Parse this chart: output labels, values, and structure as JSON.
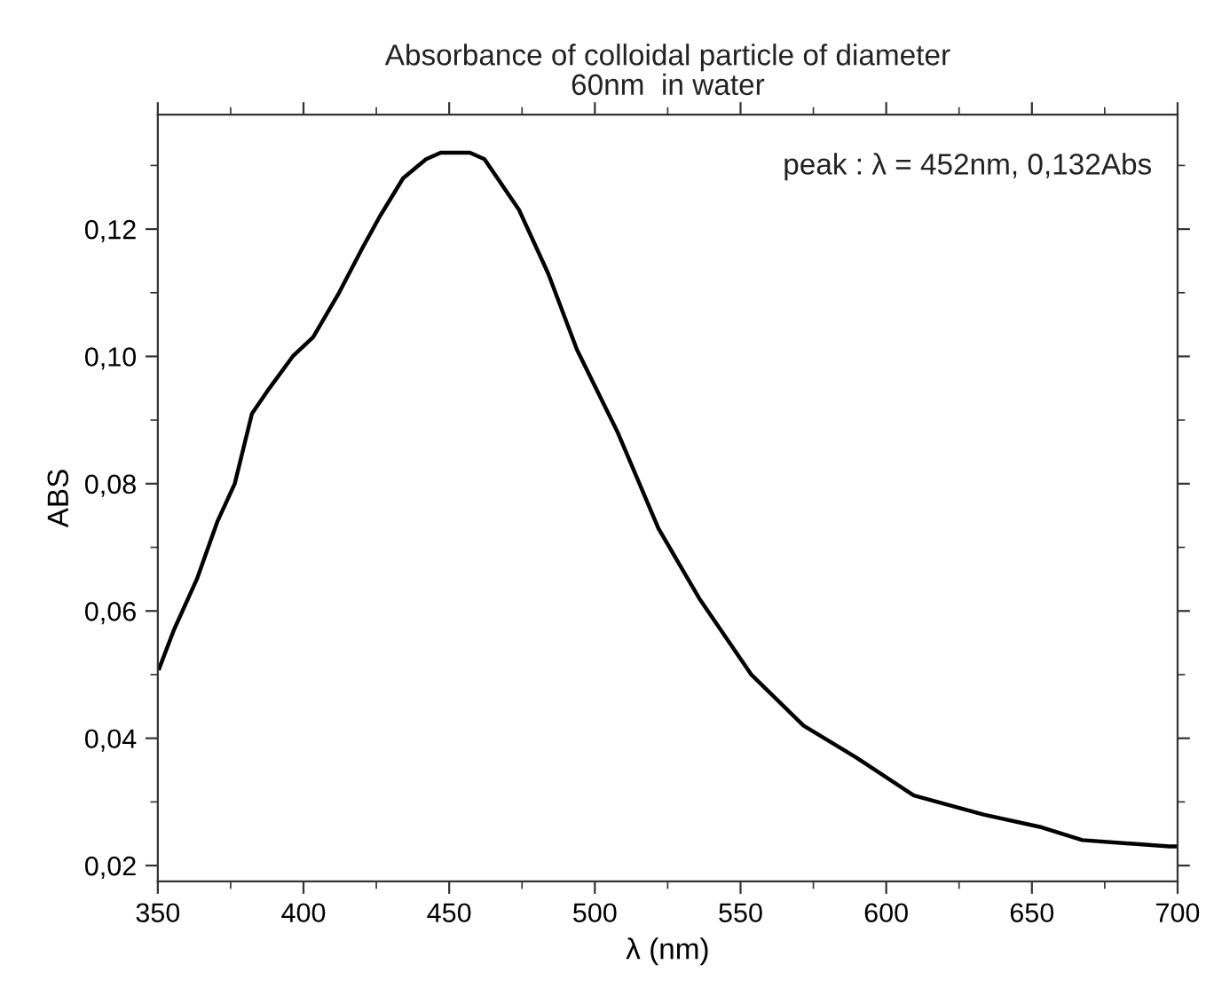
{
  "chart_data": {
    "type": "line",
    "title": "Absorbance of colloidal particle of diameter\n60nm  in water",
    "xlabel": "λ (nm)",
    "ylabel": "ABS",
    "annotations": [
      "peak : λ = 452nm, 0,132Abs"
    ],
    "xlim": [
      350,
      700
    ],
    "xticks": [
      350,
      400,
      450,
      500,
      550,
      600,
      650,
      700
    ],
    "ylim": [
      0.0175,
      0.138
    ],
    "yticks": [
      {
        "value": 0.02,
        "label": "0,02"
      },
      {
        "value": 0.04,
        "label": "0,04"
      },
      {
        "value": 0.06,
        "label": "0,06"
      },
      {
        "value": 0.08,
        "label": "0,08"
      },
      {
        "value": 0.1,
        "label": "0,10"
      },
      {
        "value": 0.12,
        "label": "0,12"
      }
    ],
    "grid": false,
    "legend": false,
    "marker": "none",
    "line_style": "solid",
    "series": [
      {
        "color": "#000000",
        "x": [
          350.5,
          355.5,
          363.4,
          370.4,
          376.4,
          382.3,
          388.3,
          396.3,
          403.3,
          412.2,
          420.2,
          426.2,
          434.2,
          442.1,
          447.1,
          452,
          457.1,
          462.1,
          474.0,
          484.0,
          493.9,
          507.9,
          521.8,
          535.8,
          553.7,
          571.6,
          589.6,
          609.5,
          633.4,
          653.4,
          667.3,
          697.2,
          700
        ],
        "values": [
          0.051,
          0.057,
          0.065,
          0.074,
          0.08,
          0.091,
          0.095,
          0.1,
          0.103,
          0.11,
          0.117,
          0.122,
          0.128,
          0.131,
          0.132,
          0.132,
          0.132,
          0.131,
          0.123,
          0.113,
          0.101,
          0.088,
          0.073,
          0.062,
          0.05,
          0.042,
          0.037,
          0.031,
          0.028,
          0.026,
          0.024,
          0.023,
          0.023
        ]
      }
    ]
  }
}
